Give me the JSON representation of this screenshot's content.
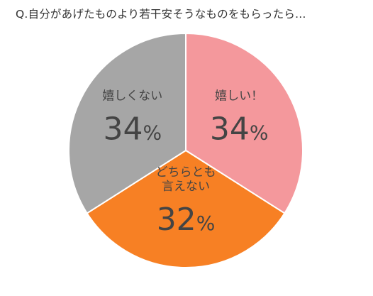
{
  "chart_data": {
    "type": "pie",
    "title": "Q.自分があげたものより若干安そうなものをもらったら…",
    "unit": "%",
    "slices": [
      {
        "label": "嬉しい！",
        "value": 34,
        "color": "#f4989c"
      },
      {
        "label": "どちらとも\n言えない",
        "value": 32,
        "color": "#f78024"
      },
      {
        "label": "嬉しくない",
        "value": 34,
        "color": "#a6a6a6"
      }
    ],
    "start_angle_deg": 0,
    "direction": "clockwise",
    "legend": "none"
  }
}
